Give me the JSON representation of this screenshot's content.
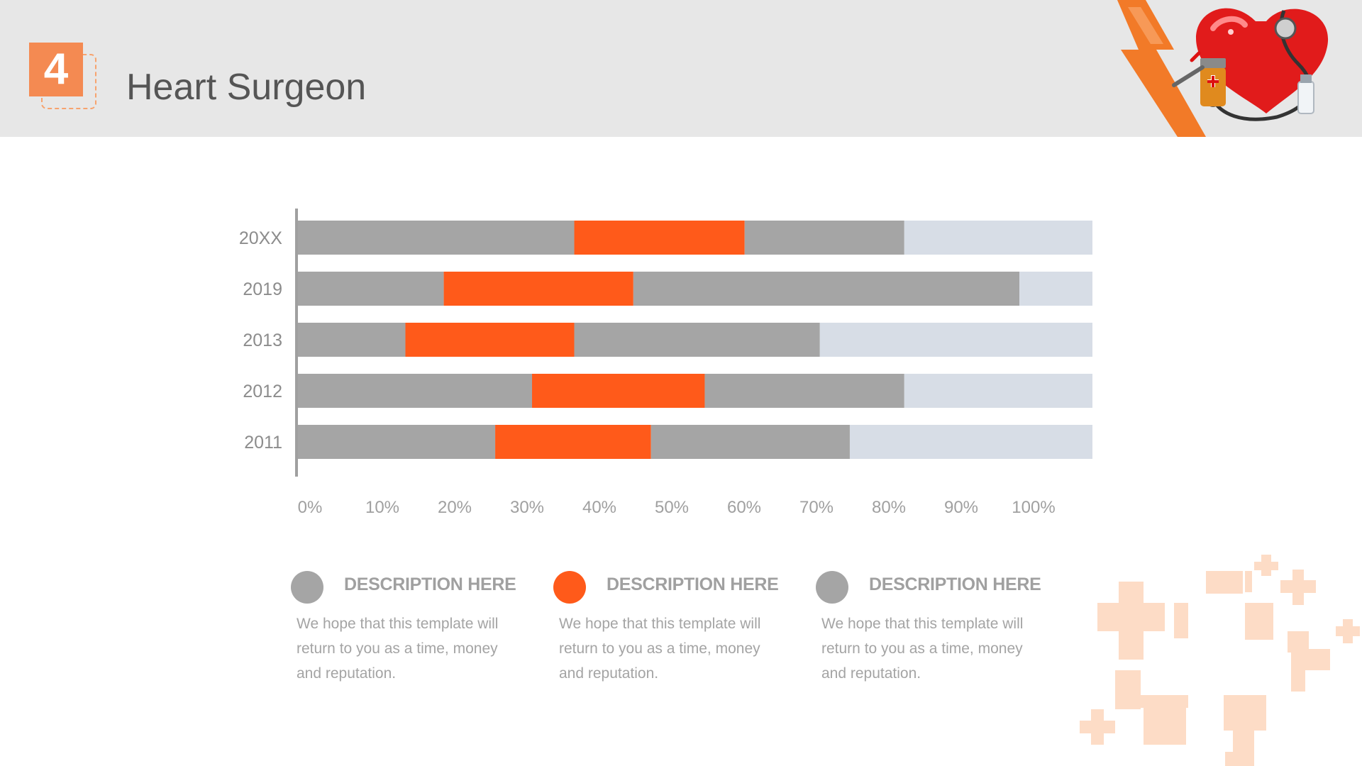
{
  "header": {
    "badge_number": "4",
    "title": "Heart Surgeon"
  },
  "colors": {
    "gray": "#a5a5a5",
    "orange": "#ff5a1a",
    "light": "#d7dde6",
    "header_bg": "#e7e7e7",
    "badge": "#f48a52"
  },
  "icons": [
    "heart-stethoscope-icon",
    "medical-cross-icon"
  ],
  "chart_data": {
    "type": "bar",
    "orientation": "horizontal",
    "stacked": true,
    "categories": [
      "20XX",
      "2019",
      "2013",
      "2012",
      "2011"
    ],
    "series": [
      {
        "values": [
          36,
          19,
          14,
          30.5,
          25.7
        ]
      },
      {
        "values": [
          22.2,
          24.7,
          22,
          22.5,
          20.3
        ]
      },
      {
        "values": [
          20.8,
          50.3,
          32,
          26,
          25.9
        ]
      },
      {
        "values": [
          25.3,
          10.3,
          36.3,
          25.3,
          32.4
        ]
      }
    ],
    "x_tick_labels": [
      "0%",
      "10%",
      "20%",
      "30%",
      "40%",
      "50%",
      "60%",
      "70%",
      "80%",
      "90%",
      "100%"
    ],
    "xlim": [
      0,
      100
    ],
    "grid": false,
    "legend": "none"
  },
  "legend": [
    {
      "heading": "DESCRIPTION HERE",
      "text": "We hope that this template will return to you as a time, money and reputation.",
      "color": "#a5a5a5"
    },
    {
      "heading": "DESCRIPTION HERE",
      "text": "We hope that this template will return to you as a time, money and reputation.",
      "color": "#ff5a1a"
    },
    {
      "heading": "DESCRIPTION HERE",
      "text": "We hope that this template will return to you as a time, money and reputation.",
      "color": "#a5a5a5"
    }
  ]
}
